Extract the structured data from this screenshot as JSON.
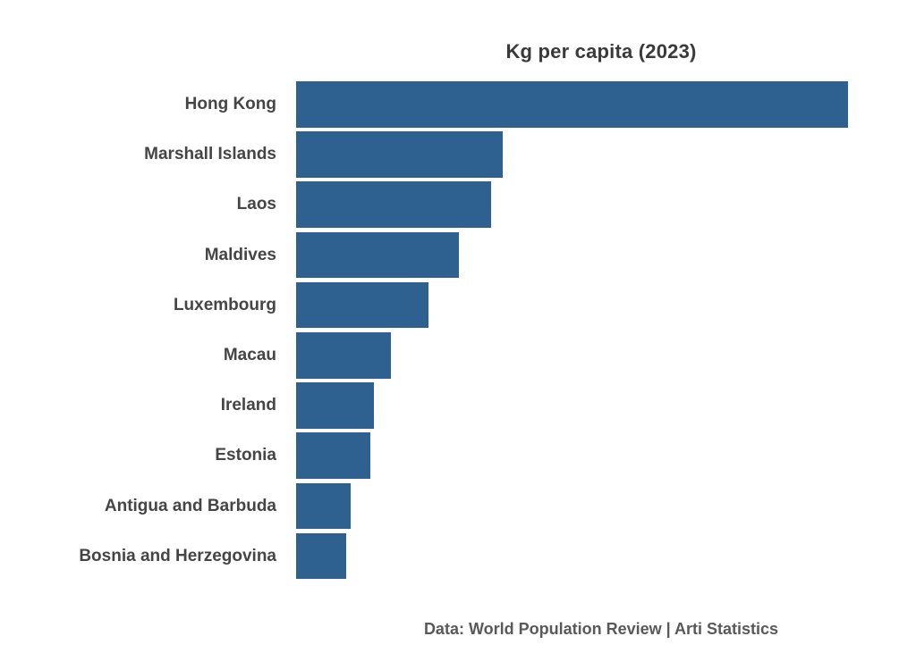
{
  "title": "Kg per capita (2023)",
  "footer": "Data: World Population Review | Arti Statistics",
  "colors": {
    "bar": "#2e6190",
    "title_text": "#3a3a3a",
    "label_text": "#454545",
    "footer_text": "#595959",
    "background": "#ffffff"
  },
  "chart_data": {
    "type": "bar",
    "orientation": "horizontal",
    "title": "Kg per capita (2023)",
    "categories": [
      "Hong Kong",
      "Marshall Islands",
      "Laos",
      "Maldives",
      "Luxembourg",
      "Macau",
      "Ireland",
      "Estonia",
      "Antigua and Barbuda",
      "Bosnia and Herzegovina"
    ],
    "values_pct_of_max": [
      100,
      37.4,
      35.3,
      29.5,
      24.0,
      17.2,
      14.1,
      13.5,
      9.9,
      9.1
    ],
    "value_labels_visible": false,
    "axis_ticks_visible": false,
    "grid": false,
    "legend": "none",
    "xlabel": "",
    "ylabel": "",
    "source": "Data: World Population Review | Arti Statistics"
  },
  "layout_note": ""
}
